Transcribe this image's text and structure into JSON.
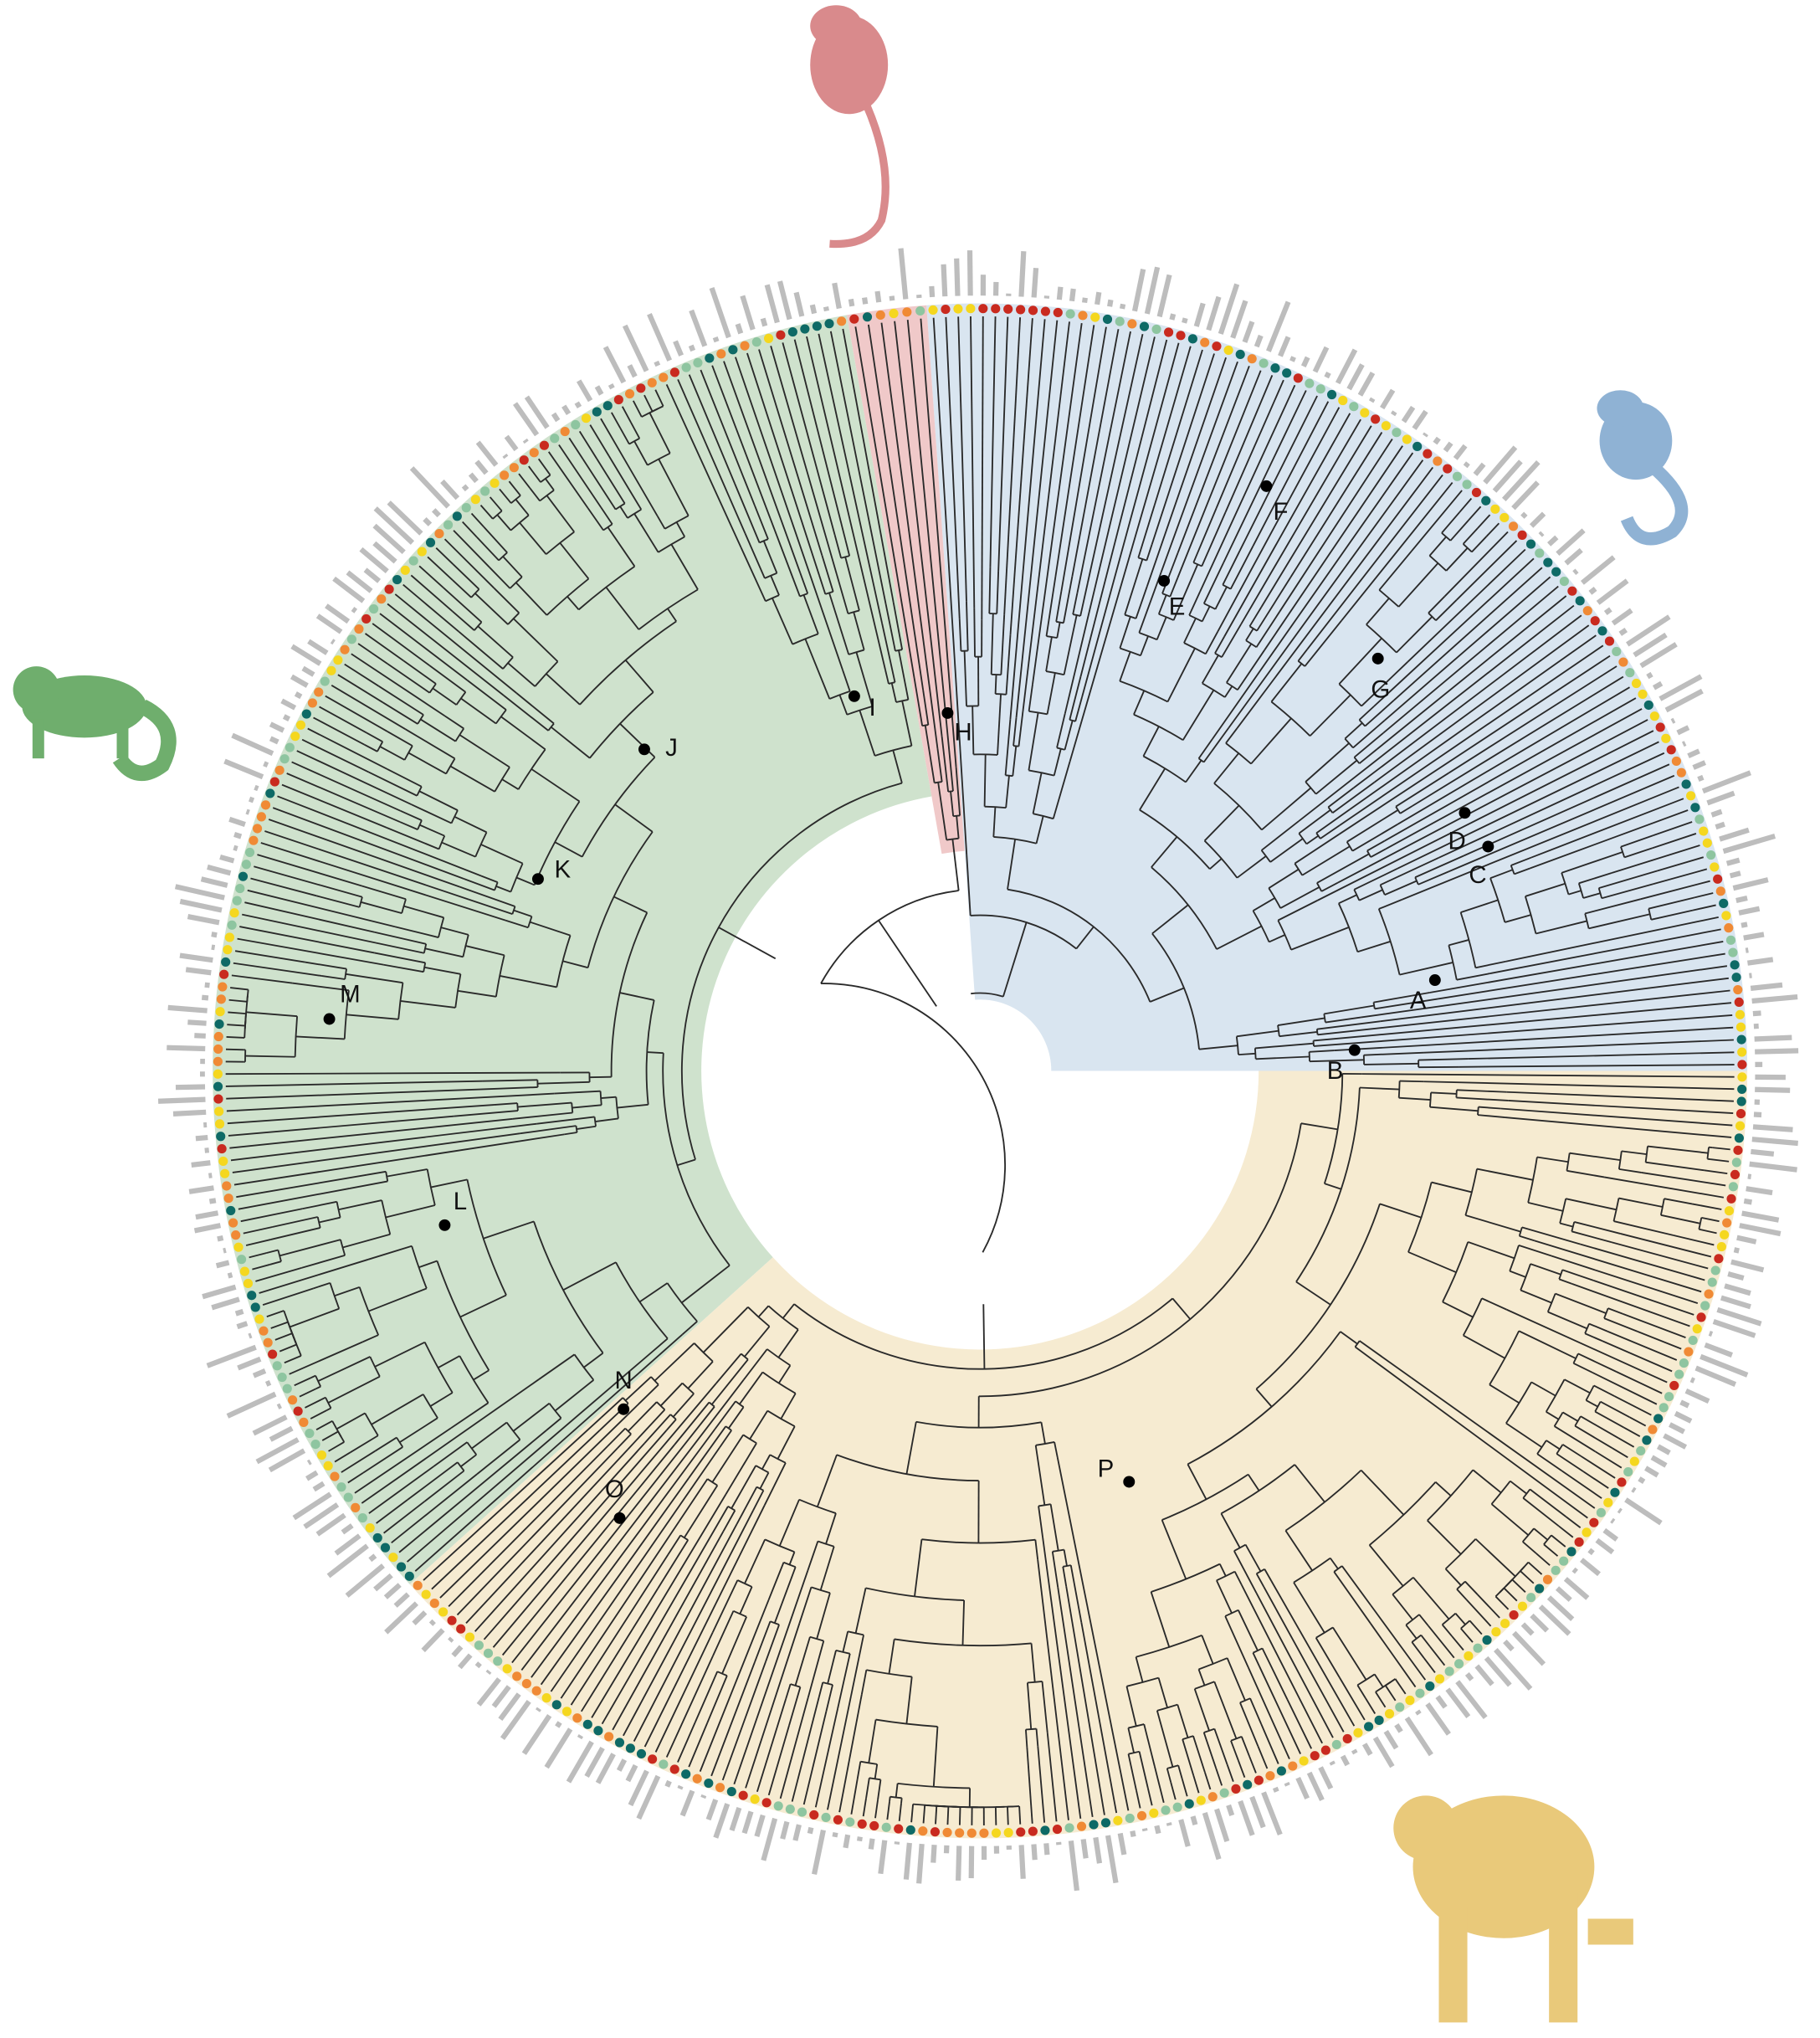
{
  "nodes": [
    {
      "label": "A"
    },
    {
      "label": "B"
    },
    {
      "label": "C"
    },
    {
      "label": "D"
    },
    {
      "label": "E"
    },
    {
      "label": "F"
    },
    {
      "label": "G"
    },
    {
      "label": "H"
    },
    {
      "label": "I"
    },
    {
      "label": "J"
    },
    {
      "label": "K"
    },
    {
      "label": "L"
    },
    {
      "label": "M"
    },
    {
      "label": "N"
    },
    {
      "label": "O"
    },
    {
      "label": "P"
    }
  ]
}
